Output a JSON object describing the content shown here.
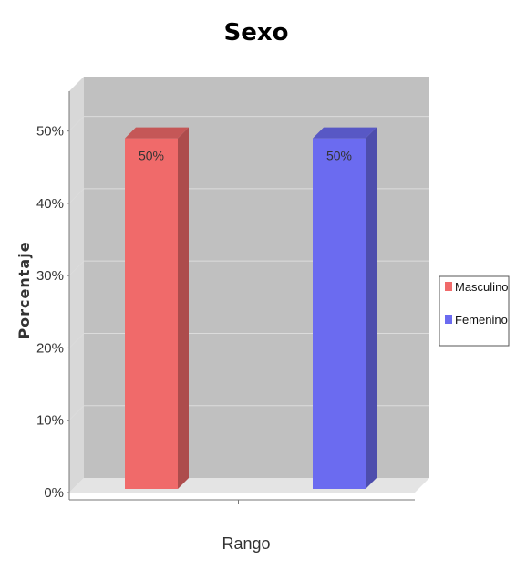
{
  "chart_data": {
    "type": "bar",
    "title": "Sexo",
    "xlabel": "Rango",
    "ylabel": "Porcentaje",
    "categories": [
      ""
    ],
    "series": [
      {
        "name": "Masculino",
        "values": [
          50
        ],
        "color": "#f06a6a",
        "data_label": "50%"
      },
      {
        "name": "Femenino",
        "values": [
          50
        ],
        "color": "#6b6bf0",
        "data_label": "50%"
      }
    ],
    "ylim": [
      0,
      55
    ],
    "yticks": [
      0,
      10,
      20,
      30,
      40,
      50
    ],
    "ytick_labels": [
      "0%",
      "10%",
      "20%",
      "30%",
      "40%",
      "50%"
    ],
    "grid": true,
    "legend_position": "right",
    "colors": {
      "plot_background": "#c0c0c0",
      "grid": "#dcdcdc"
    }
  }
}
